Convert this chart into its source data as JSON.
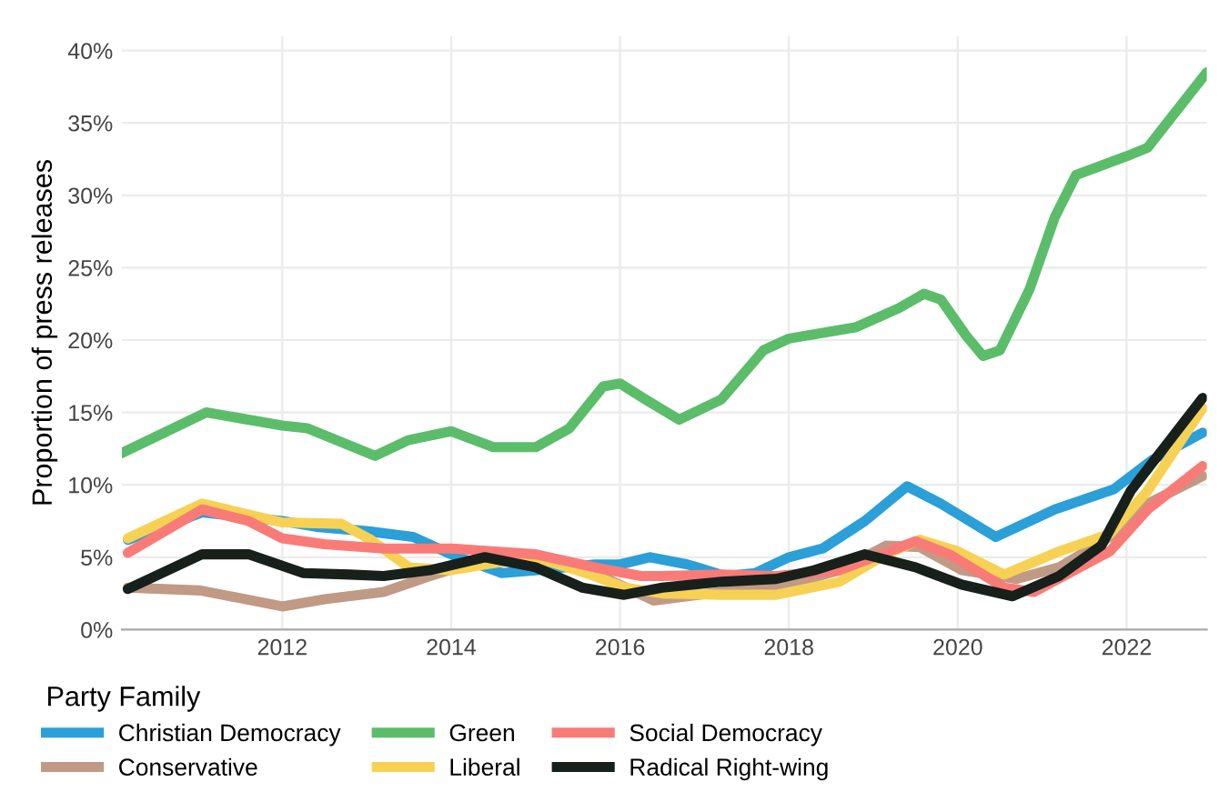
{
  "chart_data": {
    "type": "line",
    "ylabel": "Proportion of press releases",
    "legend_title": "Party Family",
    "legend": "bottom",
    "grid": true,
    "line_style": "solid",
    "xlim": [
      2010.1,
      2022.95
    ],
    "xticks": [
      2012,
      2014,
      2016,
      2018,
      2020,
      2022
    ],
    "ylim": [
      0,
      41
    ],
    "yticks": [
      {
        "value": 0,
        "label": "0%"
      },
      {
        "value": 5,
        "label": "5%"
      },
      {
        "value": 10,
        "label": "10%"
      },
      {
        "value": 15,
        "label": "15%"
      },
      {
        "value": 20,
        "label": "20%"
      },
      {
        "value": 25,
        "label": "25%"
      },
      {
        "value": 30,
        "label": "30%"
      },
      {
        "value": 35,
        "label": "35%"
      },
      {
        "value": 40,
        "label": "40%"
      }
    ],
    "series": [
      {
        "name": "Christian Democracy",
        "color": "#2b9fd8",
        "x": [
          2010.17,
          2011.05,
          2012.0,
          2012.4,
          2013.0,
          2013.55,
          2014.0,
          2014.6,
          2015.0,
          2015.7,
          2016.0,
          2016.35,
          2016.8,
          2017.25,
          2017.6,
          2018.0,
          2018.4,
          2018.9,
          2019.4,
          2019.8,
          2020.45,
          2021.15,
          2021.85,
          2022.3,
          2022.9
        ],
        "values": [
          6.2,
          8.1,
          7.5,
          7.1,
          6.8,
          6.4,
          5.2,
          3.9,
          4.1,
          4.5,
          4.5,
          5.0,
          4.5,
          3.7,
          3.9,
          5.0,
          5.6,
          7.5,
          9.9,
          8.7,
          6.4,
          8.3,
          9.7,
          11.7,
          13.6
        ]
      },
      {
        "name": "Conservative",
        "color": "#c09a85",
        "x": [
          2010.17,
          2011.03,
          2012.0,
          2012.5,
          2013.2,
          2013.75,
          2014.3,
          2015.0,
          2015.7,
          2016.4,
          2017.2,
          2017.85,
          2018.6,
          2019.15,
          2019.55,
          2020.05,
          2020.7,
          2021.2,
          2021.8,
          2022.25,
          2022.9
        ],
        "values": [
          2.9,
          2.7,
          1.6,
          2.1,
          2.6,
          3.7,
          4.7,
          4.9,
          3.9,
          2.0,
          2.6,
          2.9,
          4.1,
          5.8,
          5.7,
          4.1,
          3.5,
          4.3,
          6.4,
          8.7,
          10.6
        ]
      },
      {
        "name": "Green",
        "color": "#5bbd6a",
        "x": [
          2010.1,
          2011.1,
          2012.0,
          2012.3,
          2013.1,
          2013.5,
          2014.0,
          2014.5,
          2015.0,
          2015.4,
          2015.8,
          2016.0,
          2016.3,
          2016.7,
          2017.2,
          2017.7,
          2018.0,
          2018.5,
          2018.8,
          2019.3,
          2019.6,
          2019.8,
          2020.1,
          2020.3,
          2020.5,
          2020.85,
          2021.15,
          2021.4,
          2022.0,
          2022.25,
          2022.95
        ],
        "values": [
          12.2,
          15.0,
          14.1,
          13.9,
          12.0,
          13.1,
          13.7,
          12.6,
          12.6,
          13.9,
          16.8,
          17.0,
          15.9,
          14.5,
          15.9,
          19.3,
          20.1,
          20.6,
          20.9,
          22.2,
          23.2,
          22.8,
          20.3,
          18.9,
          19.3,
          23.5,
          28.5,
          31.4,
          32.7,
          33.3,
          38.5
        ]
      },
      {
        "name": "Liberal",
        "color": "#f7d154",
        "x": [
          2010.17,
          2011.05,
          2012.0,
          2012.7,
          2013.05,
          2013.5,
          2014.0,
          2014.4,
          2015.0,
          2015.7,
          2016.05,
          2016.5,
          2017.2,
          2017.85,
          2018.6,
          2019.15,
          2019.55,
          2020.0,
          2020.55,
          2021.2,
          2021.8,
          2022.25,
          2022.9
        ],
        "values": [
          6.3,
          8.7,
          7.4,
          7.3,
          6.2,
          4.3,
          4.1,
          4.5,
          5.0,
          3.7,
          2.9,
          2.5,
          2.4,
          2.4,
          3.3,
          5.2,
          6.2,
          5.4,
          3.8,
          5.4,
          6.6,
          9.6,
          15.3
        ]
      },
      {
        "name": "Social Democracy",
        "color": "#f97b78",
        "x": [
          2010.17,
          2011.05,
          2011.6,
          2012.0,
          2012.5,
          2013.2,
          2014.0,
          2015.0,
          2015.7,
          2016.25,
          2016.5,
          2017.2,
          2017.85,
          2018.6,
          2019.5,
          2019.9,
          2020.55,
          2020.9,
          2021.8,
          2022.25,
          2022.9
        ],
        "values": [
          5.3,
          8.3,
          7.5,
          6.3,
          5.9,
          5.6,
          5.6,
          5.2,
          4.3,
          3.7,
          3.7,
          3.8,
          3.7,
          4.1,
          6.1,
          5.2,
          2.9,
          2.6,
          5.4,
          8.3,
          11.3
        ]
      },
      {
        "name": "Radical Right-wing",
        "color": "#17201b",
        "x": [
          2010.17,
          2011.05,
          2011.6,
          2012.25,
          2012.8,
          2013.2,
          2013.75,
          2014.4,
          2015.0,
          2015.55,
          2016.05,
          2016.5,
          2017.2,
          2017.85,
          2018.3,
          2018.9,
          2019.5,
          2020.05,
          2020.65,
          2021.2,
          2021.7,
          2022.05,
          2022.9
        ],
        "values": [
          2.8,
          5.2,
          5.2,
          3.9,
          3.8,
          3.7,
          4.1,
          5.0,
          4.3,
          2.9,
          2.4,
          2.9,
          3.3,
          3.5,
          4.1,
          5.2,
          4.3,
          3.1,
          2.3,
          3.7,
          5.8,
          9.6,
          16.0
        ]
      }
    ]
  }
}
